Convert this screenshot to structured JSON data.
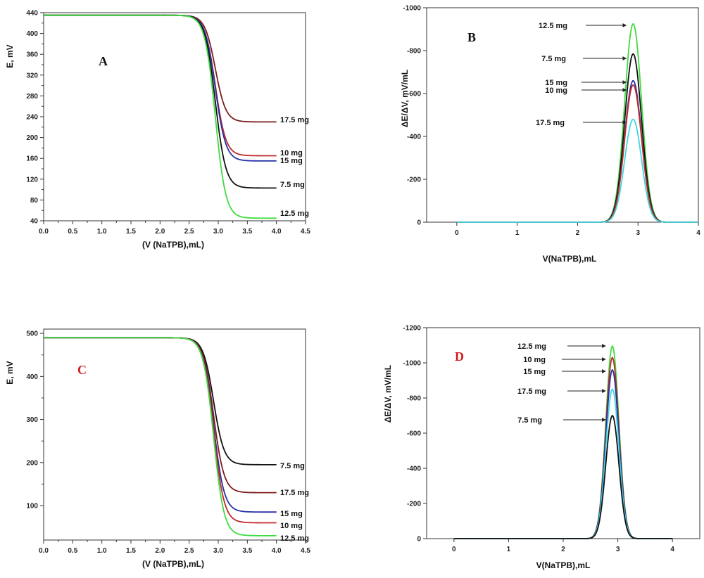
{
  "chart_data": [
    {
      "type": "line",
      "panel_letter": "A",
      "panel_letter_color": "#111111",
      "xlabel": "(V (NaTPB),mL)",
      "ylabel": "E, mV",
      "xlim": [
        0,
        4.5
      ],
      "ylim": [
        40,
        440
      ],
      "xticks": [
        "0.0",
        "0.5",
        "1.0",
        "1.5",
        "2.0",
        "2.5",
        "3.0",
        "3.5",
        "4.0",
        "4.5"
      ],
      "yticks": [
        "40",
        "80",
        "120",
        "160",
        "200",
        "240",
        "280",
        "320",
        "360",
        "400",
        "440"
      ],
      "xtick_values": [
        0,
        0.5,
        1,
        1.5,
        2,
        2.5,
        3,
        3.5,
        4,
        4.5
      ],
      "ytick_values": [
        40,
        80,
        120,
        160,
        200,
        240,
        280,
        320,
        360,
        400,
        440
      ],
      "curve": {
        "kind": "sigmoid",
        "x_start": 0,
        "x_end": 4,
        "start": 435,
        "midpoint": 2.95,
        "width": 0.09
      },
      "series": [
        {
          "name": "17.5 mg",
          "color": "#7b1e1e",
          "end": 230
        },
        {
          "name": "10 mg",
          "color": "#c0282a",
          "end": 165
        },
        {
          "name": "15 mg",
          "color": "#2631a8",
          "end": 155
        },
        {
          "name": "7.5 mg",
          "color": "#111111",
          "end": 103
        },
        {
          "name": "12.5 mg",
          "color": "#3fdc3f",
          "end": 45
        }
      ]
    },
    {
      "type": "line",
      "panel_letter": "B",
      "panel_letter_color": "#111111",
      "xlabel": "V(NaTPB),mL",
      "ylabel": "ΔE/ΔV, mV/mL",
      "xlim": [
        -0.5,
        4
      ],
      "ylim": [
        0,
        -1000
      ],
      "xticks": [
        "0",
        "1",
        "2",
        "3",
        "4"
      ],
      "yticks": [
        "0",
        "-200",
        "-400",
        "-600",
        "-800",
        "-1000"
      ],
      "xtick_values": [
        0,
        1,
        2,
        3,
        4
      ],
      "ytick_values": [
        0,
        -200,
        -400,
        -600,
        -800,
        -1000
      ],
      "curve": {
        "kind": "peak",
        "x_start": 0,
        "x_end": 4,
        "center": 2.92,
        "sigma": 0.14
      },
      "series": [
        {
          "name": "12.5 mg",
          "color": "#3fdc3f",
          "peak": -925
        },
        {
          "name": "7.5 mg",
          "color": "#111111",
          "peak": -785
        },
        {
          "name": "15 mg",
          "color": "#2631a8",
          "peak": -660
        },
        {
          "name": "10 mg",
          "color": "#c0282a",
          "peak": -640
        },
        {
          "name": "17.5 mg",
          "color": "#3fd8e0",
          "peak": -480
        }
      ]
    },
    {
      "type": "line",
      "panel_letter": "C",
      "panel_letter_color": "#d32020",
      "xlabel": "(V (NaTPB),mL)",
      "ylabel": "E, mV",
      "xlim": [
        0,
        4.5
      ],
      "ylim": [
        20,
        510
      ],
      "xticks": [
        "0.0",
        "0.5",
        "1.0",
        "1.5",
        "2.0",
        "2.5",
        "3.0",
        "3.5",
        "4.0",
        "4.5"
      ],
      "yticks": [
        "100",
        "200",
        "300",
        "400",
        "500"
      ],
      "xtick_values": [
        0,
        0.5,
        1,
        1.5,
        2,
        2.5,
        3,
        3.5,
        4,
        4.5
      ],
      "ytick_values": [
        100,
        200,
        300,
        400,
        500
      ],
      "curve": {
        "kind": "sigmoid",
        "x_start": 0,
        "x_end": 4,
        "start": 490,
        "midpoint": 2.92,
        "width": 0.09
      },
      "series": [
        {
          "name": "7.5 mg",
          "color": "#111111",
          "end": 195
        },
        {
          "name": "17.5 mg",
          "color": "#7b1e1e",
          "end": 130
        },
        {
          "name": "15 mg",
          "color": "#2631a8",
          "end": 85
        },
        {
          "name": "10 mg",
          "color": "#c0282a",
          "end": 60
        },
        {
          "name": "12.5 mg",
          "color": "#3fdc3f",
          "end": 30
        }
      ]
    },
    {
      "type": "line",
      "panel_letter": "D",
      "panel_letter_color": "#d32020",
      "xlabel": "V(NaTPB),mL",
      "ylabel": "ΔE/ΔV, mV/mL",
      "xlim": [
        -0.5,
        4.5
      ],
      "ylim": [
        0,
        -1200
      ],
      "xticks": [
        "0",
        "1",
        "2",
        "3",
        "4"
      ],
      "yticks": [
        "0",
        "-200",
        "-400",
        "-600",
        "-800",
        "-1000",
        "-1200"
      ],
      "xtick_values": [
        0,
        1,
        2,
        3,
        4
      ],
      "ytick_values": [
        0,
        -200,
        -400,
        -600,
        -800,
        -1000,
        -1200
      ],
      "curve": {
        "kind": "peak",
        "x_start": 0,
        "x_end": 4,
        "center": 2.9,
        "sigma": 0.12
      },
      "series": [
        {
          "name": "12.5 mg",
          "color": "#3fdc3f",
          "peak": -1095
        },
        {
          "name": "10 mg",
          "color": "#c0282a",
          "peak": -1030
        },
        {
          "name": "15 mg",
          "color": "#2631a8",
          "peak": -960
        },
        {
          "name": "17.5 mg",
          "color": "#3fd8e0",
          "peak": -850
        },
        {
          "name": "7.5 mg",
          "color": "#111111",
          "peak": -700
        }
      ]
    }
  ]
}
